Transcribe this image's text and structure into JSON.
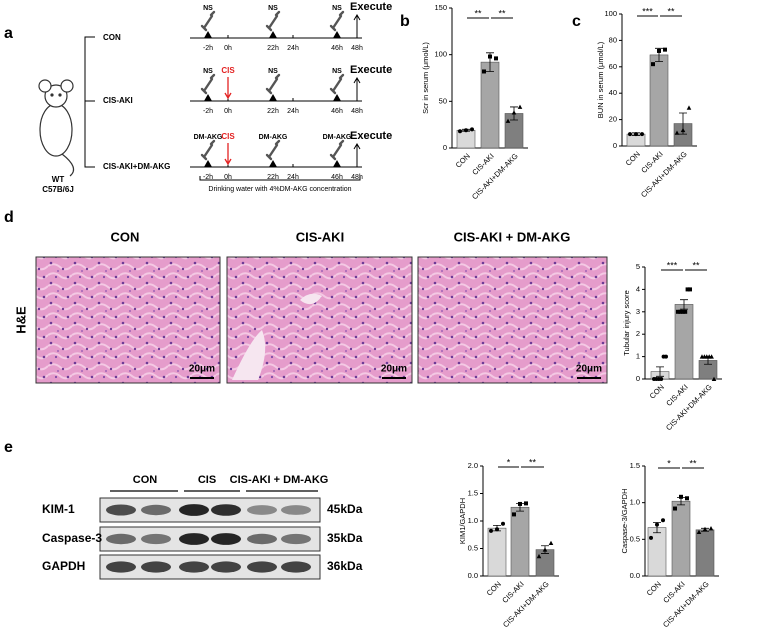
{
  "panel_labels": [
    "a",
    "b",
    "c",
    "d",
    "e"
  ],
  "timeline": {
    "mouse": [
      "WT",
      "C57B/6J"
    ],
    "times": [
      "-2h",
      "0h",
      "22h",
      "24h",
      "46h",
      "48h"
    ],
    "execute": "Execute",
    "groups": [
      {
        "name": "CON",
        "pre": "NS",
        "daily": "NS"
      },
      {
        "name": "CIS-AKI",
        "pre": "NS",
        "cis": "CIS",
        "daily": "NS"
      },
      {
        "name": "CIS-AKI+DM-AKG",
        "pre": "DM-AKG",
        "cis": "CIS",
        "daily": "DM-AKG"
      }
    ],
    "drinking_water": "Drinking water with 4%DM-AKG concentration"
  },
  "histology": {
    "stain": "H&E",
    "groups": [
      "CON",
      "CIS-AKI",
      "CIS-AKI + DM-AKG"
    ],
    "scale_bar": "20μm"
  },
  "blot": {
    "groups": [
      "CON",
      "CIS",
      "CIS-AKI + DM-AKG"
    ],
    "rows": [
      {
        "name": "KIM-1",
        "size": "45kDa"
      },
      {
        "name": "Caspase-3",
        "size": "35kDa"
      },
      {
        "name": "GAPDH",
        "size": "36kDa"
      }
    ]
  },
  "chart_data": [
    {
      "type": "bar",
      "ylabel": "Scr in serum (μmol/L)",
      "categories": [
        "CON",
        "CIS-AKI",
        "CIS-AKI+DM-AKG"
      ],
      "values": [
        19,
        92,
        37
      ],
      "errors": [
        1,
        10,
        7
      ],
      "points": [
        [
          18,
          19,
          20
        ],
        [
          82,
          98,
          96
        ],
        [
          29,
          38,
          44
        ]
      ],
      "colors": [
        "#d9d9d9",
        "#a6a6a6",
        "#7f7f7f"
      ],
      "ylim": [
        0,
        150
      ],
      "yticks": [
        0,
        50,
        100,
        150
      ],
      "significance": [
        "**",
        "**"
      ]
    },
    {
      "type": "bar",
      "ylabel": "BUN in serum (μmol/L)",
      "categories": [
        "CON",
        "CIS-AKI",
        "CIS-AKI+DM-AKG"
      ],
      "values": [
        9,
        69,
        17
      ],
      "errors": [
        1,
        5,
        8
      ],
      "points": [
        [
          9,
          9,
          9
        ],
        [
          62,
          72,
          73
        ],
        [
          10,
          12,
          29
        ]
      ],
      "colors": [
        "#d9d9d9",
        "#a6a6a6",
        "#7f7f7f"
      ],
      "ylim": [
        0,
        100
      ],
      "yticks": [
        0,
        20,
        40,
        60,
        80,
        100
      ],
      "significance": [
        "***",
        "**"
      ]
    },
    {
      "type": "bar",
      "ylabel": "Tubular injury score",
      "categories": [
        "CON",
        "CIS-AKI",
        "CIS-AKI+DM-AKG"
      ],
      "values": [
        0.33,
        3.33,
        0.83
      ],
      "errors": [
        0.21,
        0.21,
        0.17
      ],
      "points": [
        [
          0,
          0,
          0,
          0,
          1,
          1
        ],
        [
          3,
          3,
          3,
          3,
          4,
          4
        ],
        [
          1,
          1,
          1,
          1,
          1,
          0
        ]
      ],
      "colors": [
        "#d9d9d9",
        "#a6a6a6",
        "#7f7f7f"
      ],
      "ylim": [
        0,
        5
      ],
      "yticks": [
        0,
        1,
        2,
        3,
        4,
        5
      ],
      "significance": [
        "***",
        "**"
      ]
    },
    {
      "type": "bar",
      "ylabel": "KIM1/GAPDH",
      "categories": [
        "CON",
        "CIS-AKI",
        "CIS-AKI+DM-AKG"
      ],
      "values": [
        0.87,
        1.25,
        0.48
      ],
      "errors": [
        0.05,
        0.07,
        0.07
      ],
      "points": [
        [
          0.82,
          0.85,
          0.95
        ],
        [
          1.12,
          1.31,
          1.32
        ],
        [
          0.36,
          0.48,
          0.6
        ]
      ],
      "colors": [
        "#d9d9d9",
        "#a6a6a6",
        "#7f7f7f"
      ],
      "ylim": [
        0,
        2
      ],
      "yticks": [
        {
          "value": 0,
          "label": "0.0"
        },
        0.5,
        {
          "value": 1,
          "label": "1.0"
        },
        1.5,
        {
          "value": 2,
          "label": "2.0"
        }
      ],
      "significance": [
        "*",
        "**"
      ]
    },
    {
      "type": "bar",
      "ylabel": "Caspase-3/GAPDH",
      "categories": [
        "CON",
        "CIS-AKI",
        "CIS-AKI+DM-AKG"
      ],
      "values": [
        0.66,
        1.02,
        0.63
      ],
      "errors": [
        0.07,
        0.05,
        0.02
      ],
      "points": [
        [
          0.52,
          0.7,
          0.76
        ],
        [
          0.92,
          1.08,
          1.06
        ],
        [
          0.6,
          0.64,
          0.65
        ]
      ],
      "colors": [
        "#d9d9d9",
        "#a6a6a6",
        "#7f7f7f"
      ],
      "ylim": [
        0,
        1.5
      ],
      "yticks": [
        {
          "value": 0,
          "label": "0.0"
        },
        0.5,
        {
          "value": 1,
          "label": "1.0"
        },
        1.5
      ],
      "significance": [
        "*",
        "**"
      ]
    }
  ]
}
